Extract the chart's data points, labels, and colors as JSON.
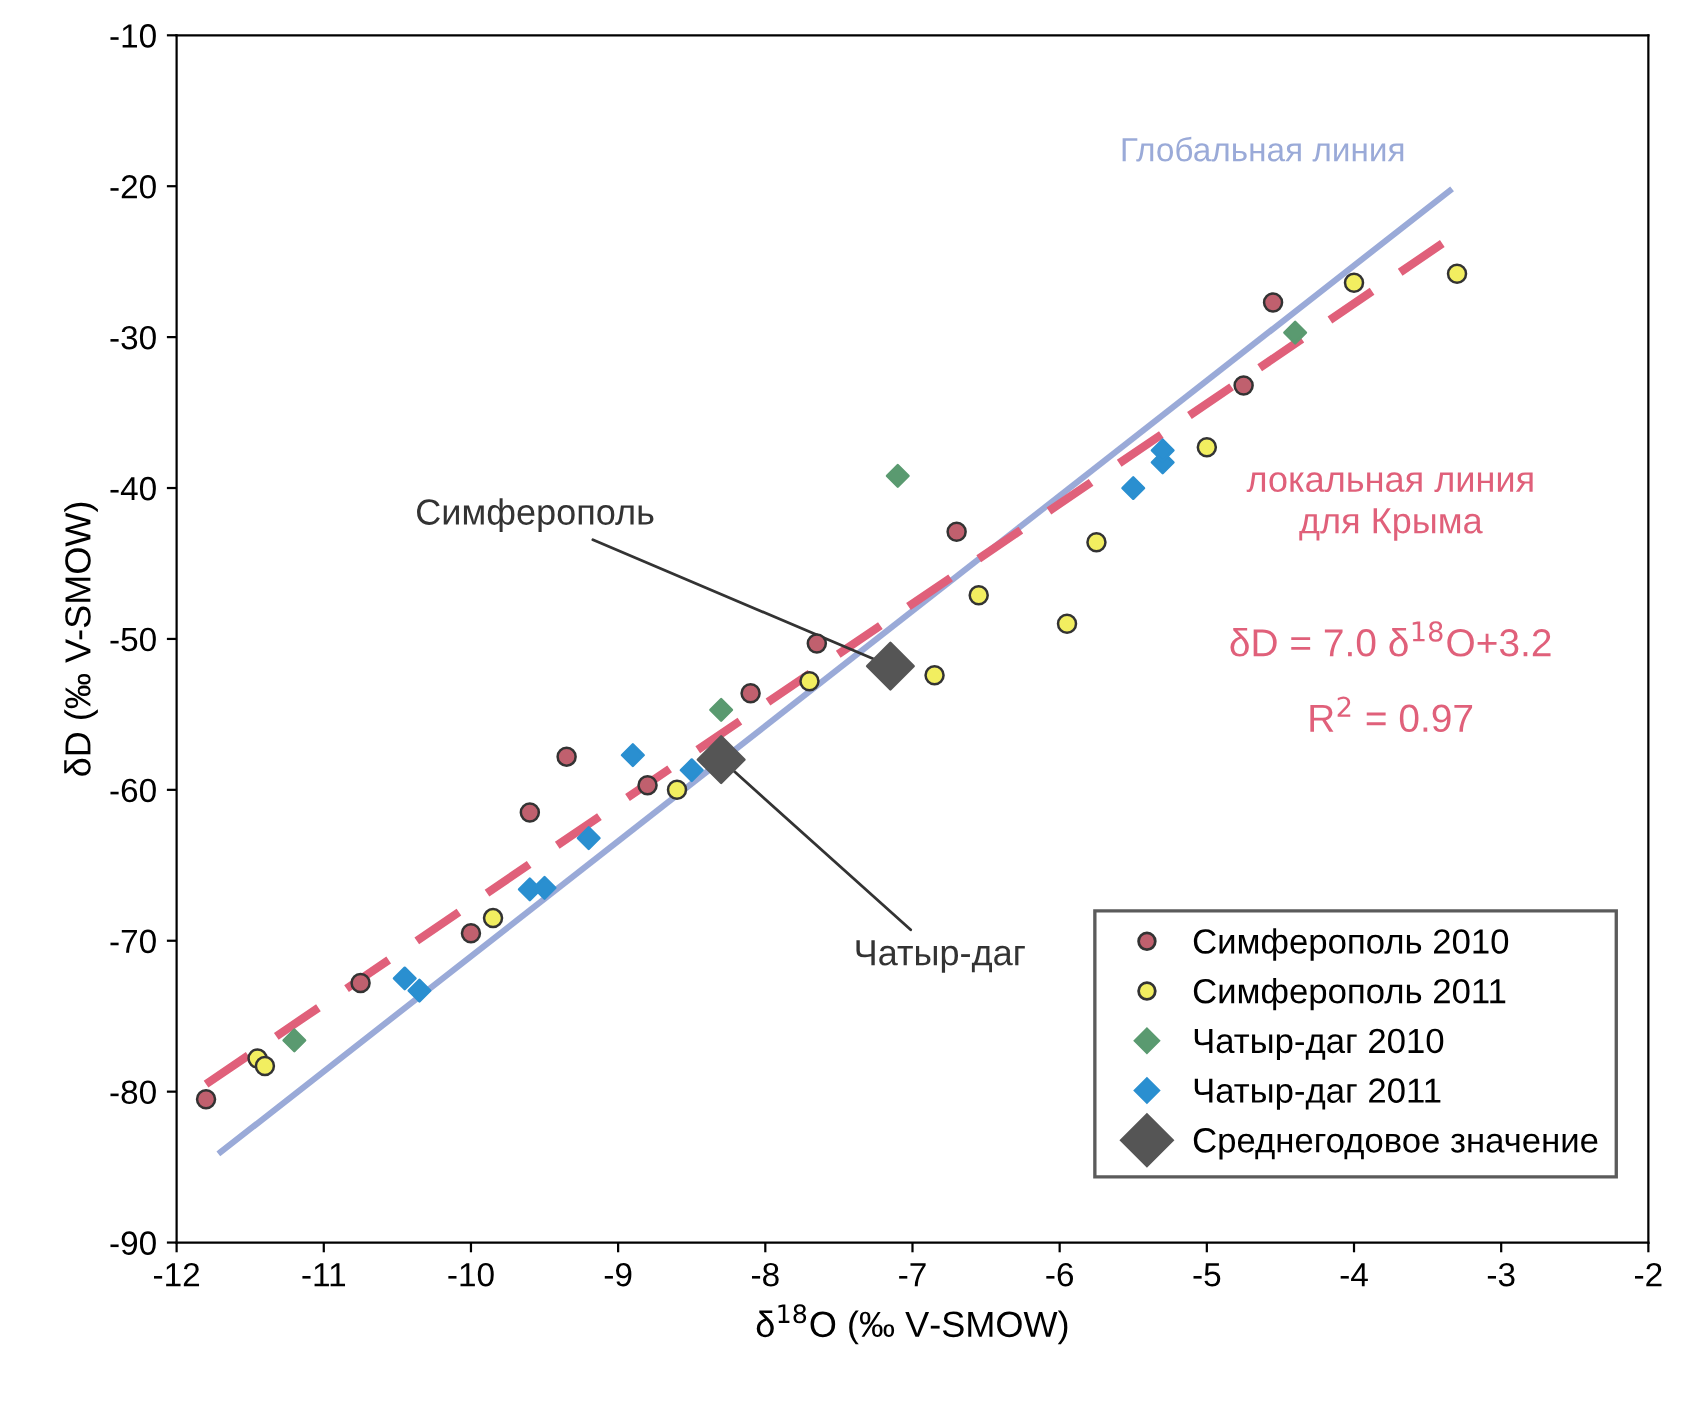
{
  "chart_data": {
    "type": "scatter",
    "xlabel": "δ$^{18}$O (‰ V-SMOW)",
    "ylabel": "δD (‰ V-SMOW)",
    "xlim": [
      -12,
      -2
    ],
    "ylim": [
      -90,
      -10
    ],
    "xticks": [
      -12,
      -11,
      -10,
      -9,
      -8,
      -7,
      -6,
      -5,
      -4,
      -3,
      -2
    ],
    "yticks": [
      -90,
      -80,
      -70,
      -60,
      -50,
      -40,
      -30,
      -20,
      -10
    ],
    "grid": false,
    "legend": "bottom right",
    "series": [
      {
        "name": "Симферополь 2010",
        "color": "#c0606e",
        "marker": "circle",
        "x": [
          -11.8,
          -10.75,
          -10.0,
          -9.6,
          -9.35,
          -8.8,
          -8.1,
          -7.65,
          -6.7,
          -4.75,
          -4.55
        ],
        "values": [
          -80.5,
          -72.8,
          -69.5,
          -61.5,
          -57.8,
          -59.7,
          -53.6,
          -50.3,
          -42.9,
          -33.2,
          -27.7
        ]
      },
      {
        "name": "Симферополь 2011",
        "color": "#f2ee60",
        "marker": "circle",
        "x": [
          -11.45,
          -11.4,
          -9.85,
          -8.6,
          -7.7,
          -6.85,
          -6.55,
          -5.95,
          -5.75,
          -5.0,
          -4.0,
          -3.3
        ],
        "values": [
          -77.8,
          -78.3,
          -68.5,
          -60.0,
          -52.8,
          -52.4,
          -47.1,
          -49.0,
          -43.6,
          -37.3,
          -26.4,
          -25.8
        ]
      },
      {
        "name": "Чатыр-даг 2010",
        "color": "#5a9a70",
        "marker": "diamond",
        "x": [
          -11.2,
          -8.3,
          -7.1,
          -4.4
        ],
        "values": [
          -76.6,
          -54.7,
          -39.2,
          -29.7
        ]
      },
      {
        "name": "Чатыр-даг 2011",
        "color": "#2a8fd0",
        "marker": "diamond",
        "x": [
          -10.45,
          -10.35,
          -9.6,
          -9.5,
          -9.2,
          -8.9,
          -8.5,
          -5.5,
          -5.3,
          -5.3
        ],
        "values": [
          -72.5,
          -73.3,
          -66.6,
          -66.5,
          -63.2,
          -57.7,
          -58.7,
          -40.0,
          -38.3,
          -37.5
        ]
      },
      {
        "name": "Среднегодовое значение",
        "color": "#555555",
        "marker": "diamond",
        "x": [
          -8.3,
          -7.15
        ],
        "values": [
          -58.0,
          -51.8
        ]
      },
      {
        "name": "Глобальная линия",
        "type": "line",
        "color": "#9aaad8",
        "line_style": "solid",
        "marker": "none",
        "x": [
          -11.7,
          -3.35
        ],
        "values": [
          -84.0,
          -20.3
        ]
      },
      {
        "name": "локальная линия для Крыма",
        "type": "line",
        "color": "#e0607a",
        "line_style": "dashed",
        "marker": "none",
        "x": [
          -11.8,
          -3.4
        ],
        "values": [
          -79.5,
          -23.8
        ]
      }
    ],
    "annotations": [
      {
        "text": "Симферополь",
        "x": -7.15,
        "y": -51.8
      },
      {
        "text": "Чатыр-даг",
        "x": -8.3,
        "y": -58.0
      },
      "δD = 7.0 δ$^{18}$O+3.2",
      "R$^{2}$ = 0.97"
    ]
  }
}
